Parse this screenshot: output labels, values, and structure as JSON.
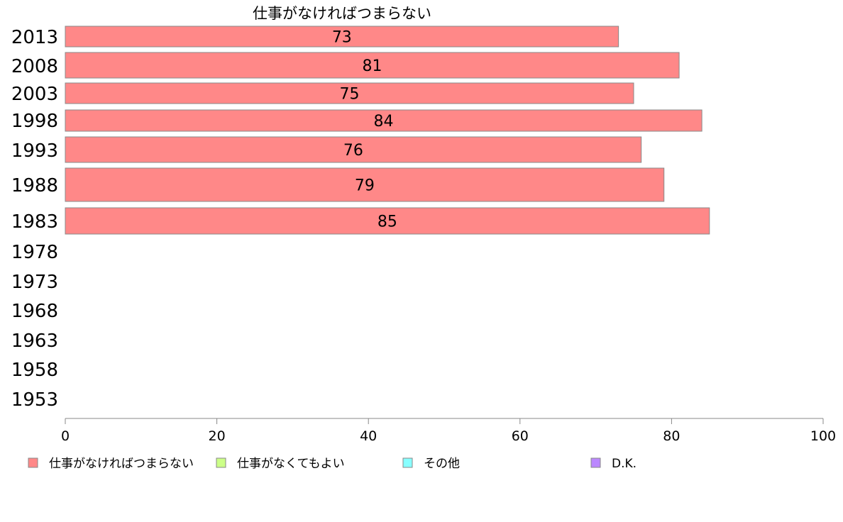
{
  "chart_data": {
    "type": "bar",
    "orientation": "horizontal",
    "title": "仕事がなければつまらない",
    "categories": [
      "2013",
      "2008",
      "2003",
      "1998",
      "1993",
      "1988",
      "1983",
      "1978",
      "1973",
      "1968",
      "1963",
      "1958",
      "1953"
    ],
    "series": [
      {
        "name": "仕事がなければつまらない",
        "color": "#ff8888",
        "values": [
          73,
          81,
          75,
          84,
          76,
          79,
          85,
          null,
          null,
          null,
          null,
          null,
          null
        ]
      }
    ],
    "legend": [
      {
        "label": "仕事がなければつまらない",
        "color": "#ff8888"
      },
      {
        "label": "仕事がなくてもよい",
        "color": "#ccff88"
      },
      {
        "label": "その他",
        "color": "#88ffff"
      },
      {
        "label": "D.K.",
        "color": "#bb88ff"
      }
    ],
    "xlim": [
      0,
      100
    ],
    "xticks": [
      "0",
      "20",
      "40",
      "60",
      "80",
      "100"
    ],
    "legend_position": "bottom",
    "grid": false
  }
}
